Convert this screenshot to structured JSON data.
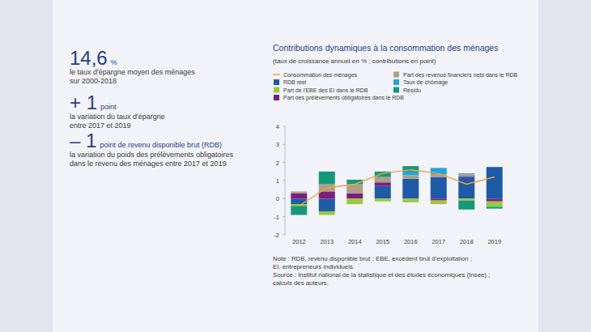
{
  "key_figures": [
    {
      "value": "14,6",
      "unit": "%",
      "text": [
        "le taux d'épargne moyen des ménages",
        "sur 2000-2018"
      ]
    },
    {
      "value": "+ 1",
      "unit": "point",
      "text": [
        "la variation du taux d'épargne",
        "entre 2017 et 2019"
      ]
    },
    {
      "value": "– 1",
      "unit": "point de revenu disponible brut (RDB)",
      "text": [
        "la variation du poids des prélèvements obligatoires",
        "dans le revenu des ménages entre 2017 et 2019"
      ]
    }
  ],
  "notes": [
    "Note : RDB, revenu disponible brut ; EBE, excédent brut d'exploitation ;",
    "EI, entrepreneurs individuels.",
    "Source : Institut national de la statistique et des études économiques (Insee) ;",
    "calculs des auteurs."
  ],
  "chart_data": {
    "type": "bar",
    "title": "Contributions dynamiques à la consommation des ménages",
    "subtitle": "(taux de croissance annuel en % ; contributions en point)",
    "stacked": true,
    "grid": false,
    "legend": "top",
    "categories": [
      "2012",
      "2013",
      "2014",
      "2015",
      "2016",
      "2017",
      "2018",
      "2019"
    ],
    "ylim": [
      -2,
      4
    ],
    "yticks": [
      -2,
      -1,
      0,
      1,
      2,
      3,
      4
    ],
    "series": [
      {
        "name": "Consommation des ménages",
        "type": "line",
        "color": "#f2a33a",
        "values": [
          -0.4,
          0.6,
          0.8,
          1.4,
          1.6,
          1.4,
          0.8,
          1.2
        ]
      },
      {
        "name": "RDB réel",
        "type": "bar",
        "color": "#1f5aa6",
        "values": [
          -0.3,
          -0.7,
          0,
          0.7,
          1.1,
          1.2,
          1.2,
          1.75
        ]
      },
      {
        "name": "Part des prélèvements obligatoires dans le RDB",
        "type": "bar",
        "color": "#7b1f7e",
        "values": [
          0.3,
          0.4,
          0.3,
          0.2,
          0,
          -0.1,
          0.05,
          -0.15
        ]
      },
      {
        "name": "Part des revenus financiers nets dans le RDB",
        "type": "bar",
        "color": "#ae9f86",
        "values": [
          0.1,
          0.4,
          0.5,
          0.3,
          0.2,
          0.15,
          0.1,
          0
        ]
      },
      {
        "name": "Taux de chômage",
        "type": "bar",
        "color": "#20a6de",
        "values": [
          0,
          0,
          0,
          0,
          0.2,
          0.35,
          0.05,
          0
        ]
      },
      {
        "name": "Part de l'EBE des EI dans le RDB",
        "type": "bar",
        "color": "#9cc83c",
        "values": [
          -0.1,
          -0.2,
          -0.3,
          -0.15,
          -0.2,
          -0.2,
          -0.1,
          -0.3
        ]
      },
      {
        "name": "Résidu",
        "type": "bar",
        "color": "#169879",
        "values": [
          -0.5,
          0.7,
          0.25,
          0.3,
          0.3,
          0,
          -0.5,
          -0.1
        ]
      }
    ]
  }
}
